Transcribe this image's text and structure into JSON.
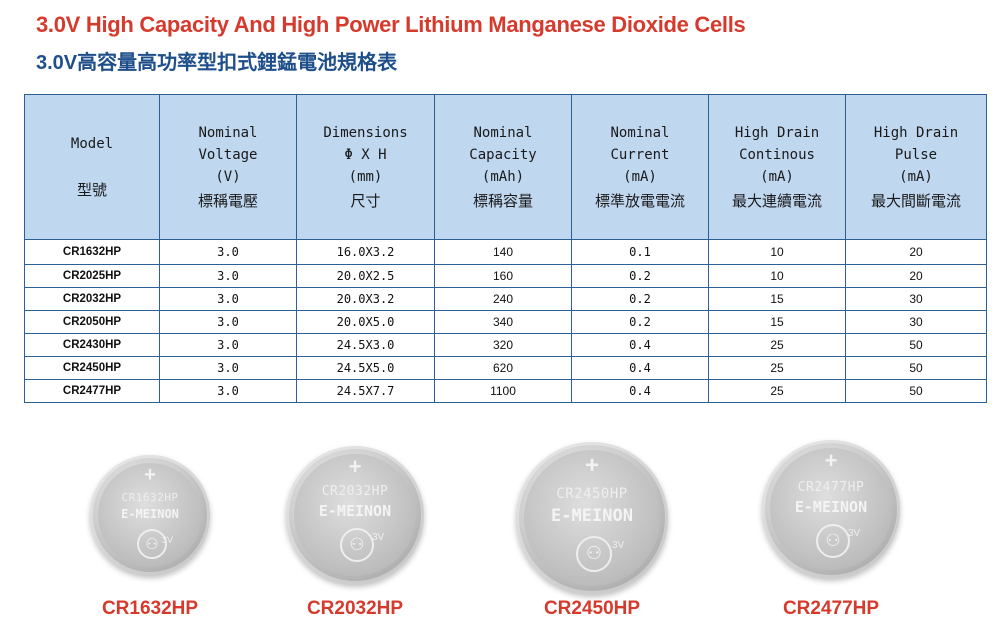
{
  "header": {
    "title_en": "3.0V High Capacity And High Power Lithium Manganese Dioxide Cells",
    "title_zh": "3.0V高容量高功率型扣式鋰錳電池規格表"
  },
  "table": {
    "columns": [
      {
        "en": "Model",
        "zh": "型號"
      },
      {
        "en": "Nominal\nVoltage\n(V)",
        "zh": "標稱電壓"
      },
      {
        "en": "Dimensions\nΦ X H\n(mm)",
        "zh": "尺寸"
      },
      {
        "en": "Nominal\nCapacity\n(mAh)",
        "zh": "標稱容量"
      },
      {
        "en": "Nominal\nCurrent\n(mA)",
        "zh": "標準放電電流"
      },
      {
        "en": "High Drain\nContinous\n(mA)",
        "zh": "最大連續電流"
      },
      {
        "en": "High Drain\nPulse\n(mA)",
        "zh": "最大間斷電流"
      }
    ],
    "rows": [
      [
        "CR1632HP",
        "3.0",
        "16.0X3.2",
        "140",
        "0.1",
        "10",
        "20"
      ],
      [
        "CR2025HP",
        "3.0",
        "20.0X2.5",
        "160",
        "0.2",
        "10",
        "20"
      ],
      [
        "CR2032HP",
        "3.0",
        "20.0X3.2",
        "240",
        "0.2",
        "15",
        "30"
      ],
      [
        "CR2050HP",
        "3.0",
        "20.0X5.0",
        "340",
        "0.2",
        "15",
        "30"
      ],
      [
        "CR2430HP",
        "3.0",
        "24.5X3.0",
        "320",
        "0.4",
        "25",
        "50"
      ],
      [
        "CR2450HP",
        "3.0",
        "24.5X5.0",
        "620",
        "0.4",
        "25",
        "50"
      ],
      [
        "CR2477HP",
        "3.0",
        "24.5X7.7",
        "1100",
        "0.4",
        "25",
        "50"
      ]
    ]
  },
  "cells": [
    {
      "print": "CR1632HP",
      "brand": "E-MEINON",
      "voltage": "3V",
      "caption": "CR1632HP"
    },
    {
      "print": "CR2032HP",
      "brand": "E-MEINON",
      "voltage": "3V",
      "caption": "CR2032HP"
    },
    {
      "print": "CR2450HP",
      "brand": "E-MEINON",
      "voltage": "3V",
      "caption": "CR2450HP"
    },
    {
      "print": "CR2477HP",
      "brand": "E-MEINON",
      "voltage": "3V",
      "caption": "CR2477HP"
    }
  ],
  "colors": {
    "title_red": "#d63a2c",
    "title_blue": "#1f4f8a",
    "header_fill": "#bfd7ef",
    "grid_line": "#2b5f96"
  }
}
